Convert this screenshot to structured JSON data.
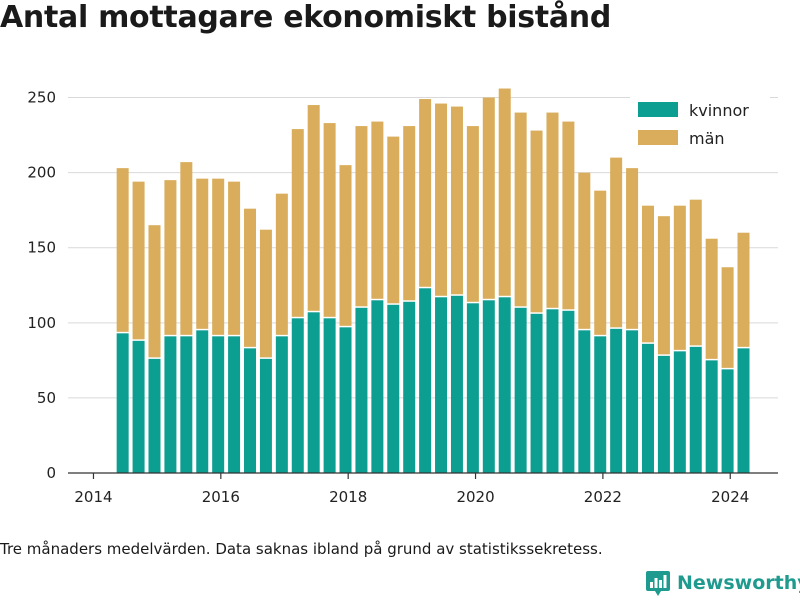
{
  "title": "Antal mottagare ekonomiskt bistånd",
  "footnote": "Tre månaders medelvärden. Data saknas ibland på grund av statistikssekretess.",
  "brand": {
    "name": "Newsworthy",
    "icon": "newsworthy-logo-icon",
    "color": "#1f9a8f"
  },
  "colors": {
    "kvinnor": "#0d9e92",
    "man": "#d9ad5b",
    "grid": "#d9d9d9",
    "axis": "#333333"
  },
  "chart_data": {
    "type": "bar",
    "stacked": true,
    "title": "Antal mottagare ekonomiskt bistånd",
    "xlabel": "",
    "ylabel": "",
    "x_ticks": [
      2014,
      2016,
      2018,
      2020,
      2022,
      2024
    ],
    "xlim": [
      2013.6,
      2024.75
    ],
    "y_ticks": [
      0,
      50,
      100,
      150,
      200,
      250
    ],
    "ylim": [
      0,
      275
    ],
    "grid": true,
    "legend_position": "top-right",
    "x": [
      "2014-06",
      "2014-09",
      "2014-12",
      "2015-03",
      "2015-06",
      "2015-09",
      "2015-12",
      "2016-03",
      "2016-06",
      "2016-09",
      "2016-12",
      "2017-03",
      "2017-06",
      "2017-09",
      "2017-12",
      "2018-03",
      "2018-06",
      "2018-09",
      "2018-12",
      "2019-03",
      "2019-06",
      "2019-09",
      "2019-12",
      "2020-03",
      "2020-06",
      "2020-09",
      "2020-12",
      "2021-03",
      "2021-06",
      "2021-09",
      "2021-12",
      "2022-03",
      "2022-06",
      "2022-09",
      "2022-12",
      "2023-03",
      "2023-06",
      "2023-09",
      "2023-12",
      "2024-03"
    ],
    "series": [
      {
        "name": "kvinnor",
        "values": [
          93,
          88,
          76,
          91,
          91,
          95,
          91,
          91,
          83,
          76,
          91,
          103,
          107,
          103,
          97,
          110,
          115,
          112,
          114,
          123,
          117,
          118,
          113,
          115,
          117,
          110,
          106,
          109,
          108,
          95,
          91,
          96,
          95,
          86,
          78,
          81,
          84,
          75,
          69,
          83
        ]
      },
      {
        "name": "män",
        "values": [
          110,
          106,
          89,
          104,
          116,
          101,
          105,
          103,
          93,
          86,
          95,
          126,
          138,
          130,
          108,
          121,
          119,
          112,
          117,
          126,
          129,
          126,
          118,
          135,
          139,
          130,
          122,
          131,
          126,
          105,
          97,
          114,
          108,
          92,
          93,
          97,
          98,
          81,
          68,
          77
        ]
      }
    ]
  }
}
